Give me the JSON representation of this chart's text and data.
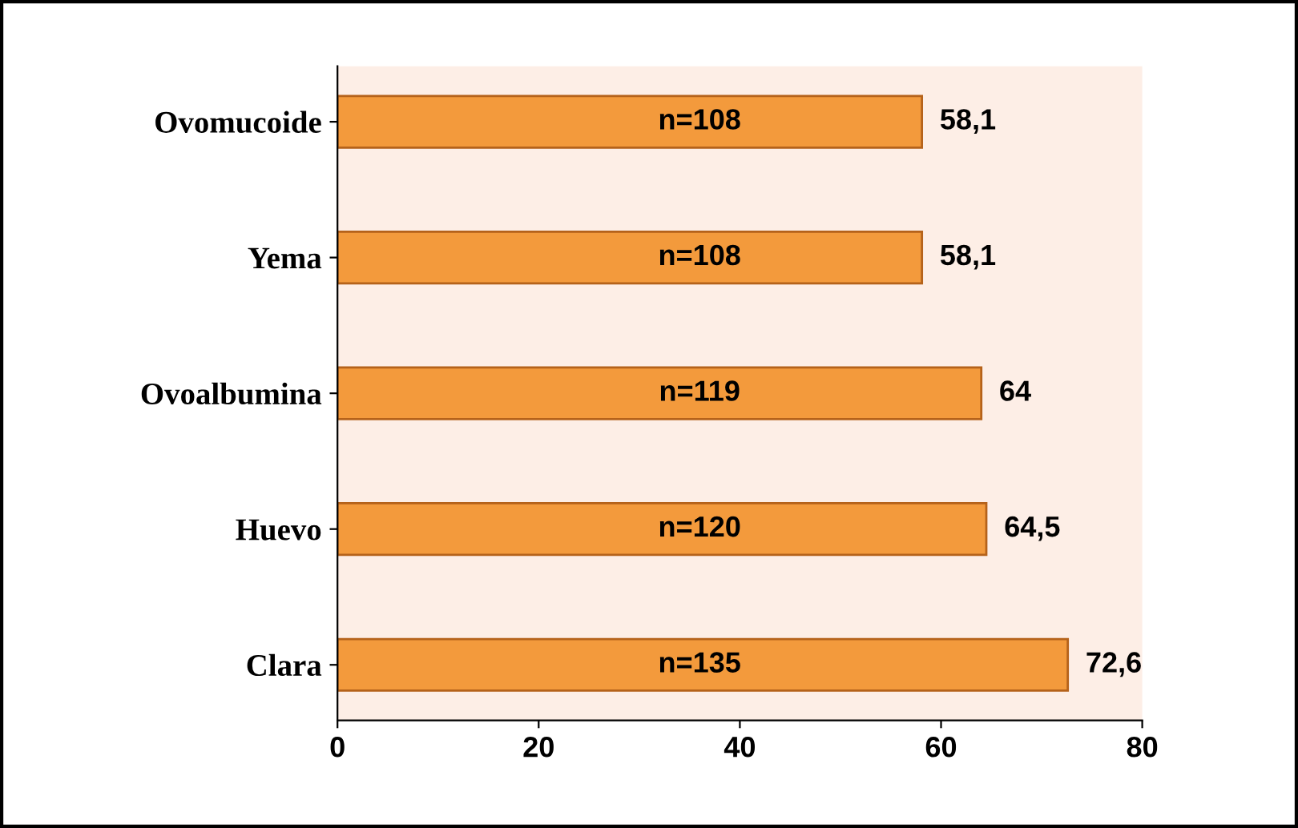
{
  "chart_data": {
    "type": "bar",
    "orientation": "horizontal",
    "categories": [
      "Ovomucoide",
      "Yema",
      "Ovoalbumina",
      "Huevo",
      "Clara"
    ],
    "values": [
      58.1,
      58.1,
      64,
      64.5,
      72.6
    ],
    "value_labels": [
      "58,1",
      "58,1",
      "64",
      "64,5",
      "72,6"
    ],
    "color": "#f39a3c",
    "xlim": [
      0,
      80
    ],
    "xticks": [
      0,
      20,
      40,
      60,
      80
    ],
    "grid": false,
    "legend": false,
    "annotations": [
      "n=108",
      "n=108",
      "n=119",
      "n=120",
      "n=135"
    ]
  }
}
